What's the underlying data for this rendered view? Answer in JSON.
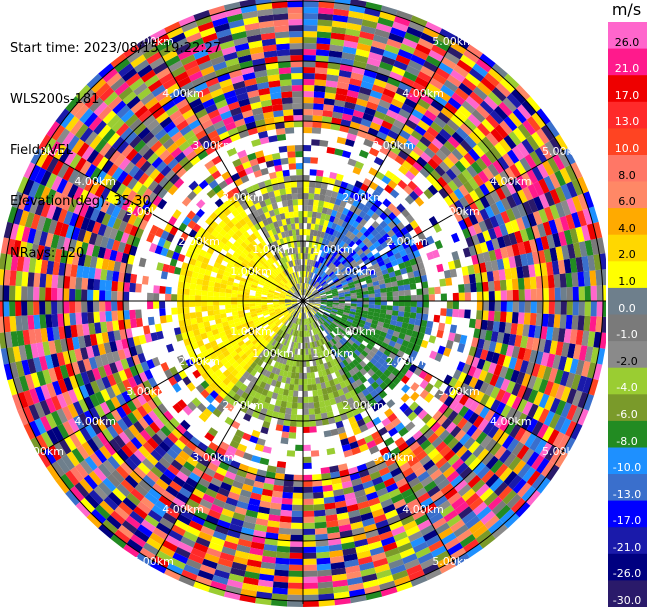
{
  "info": {
    "start_time": "Start time: 2023/08/15 19:22:27",
    "station": "WLS200s-181",
    "field": "Field: VEL",
    "elevation": "Elevation(deg): 35.30",
    "nrays": "NRays: 120"
  },
  "ring_labels": [
    "1.00km",
    "2.00km",
    "3.00km",
    "4.00km",
    "5.00km"
  ],
  "colorbar": {
    "unit": "m/s",
    "ticks": [
      "26.0",
      "21.0",
      "17.0",
      "13.0",
      "10.0",
      "8.0",
      "6.0",
      "4.0",
      "2.0",
      "1.0",
      "0.0",
      "-1.0",
      "-2.0",
      "-4.0",
      "-6.0",
      "-8.0",
      "-10.0",
      "-13.0",
      "-17.0",
      "-21.0",
      "-26.0",
      "-30.0"
    ],
    "colors": [
      "#ff66cc",
      "#ff1a8c",
      "#ee0000",
      "#ff2a2a",
      "#ff4422",
      "#ff7766",
      "#ff8866",
      "#ffaa00",
      "#ffd700",
      "#ffff00",
      "#6e7f8c",
      "#7a7a7a",
      "#8a8a8a",
      "#9acd32",
      "#7a9a2a",
      "#228b22",
      "#1e90ff",
      "#3a6fcc",
      "#0000ff",
      "#1a1aaa",
      "#000080",
      "#2a1a6a"
    ]
  }
}
